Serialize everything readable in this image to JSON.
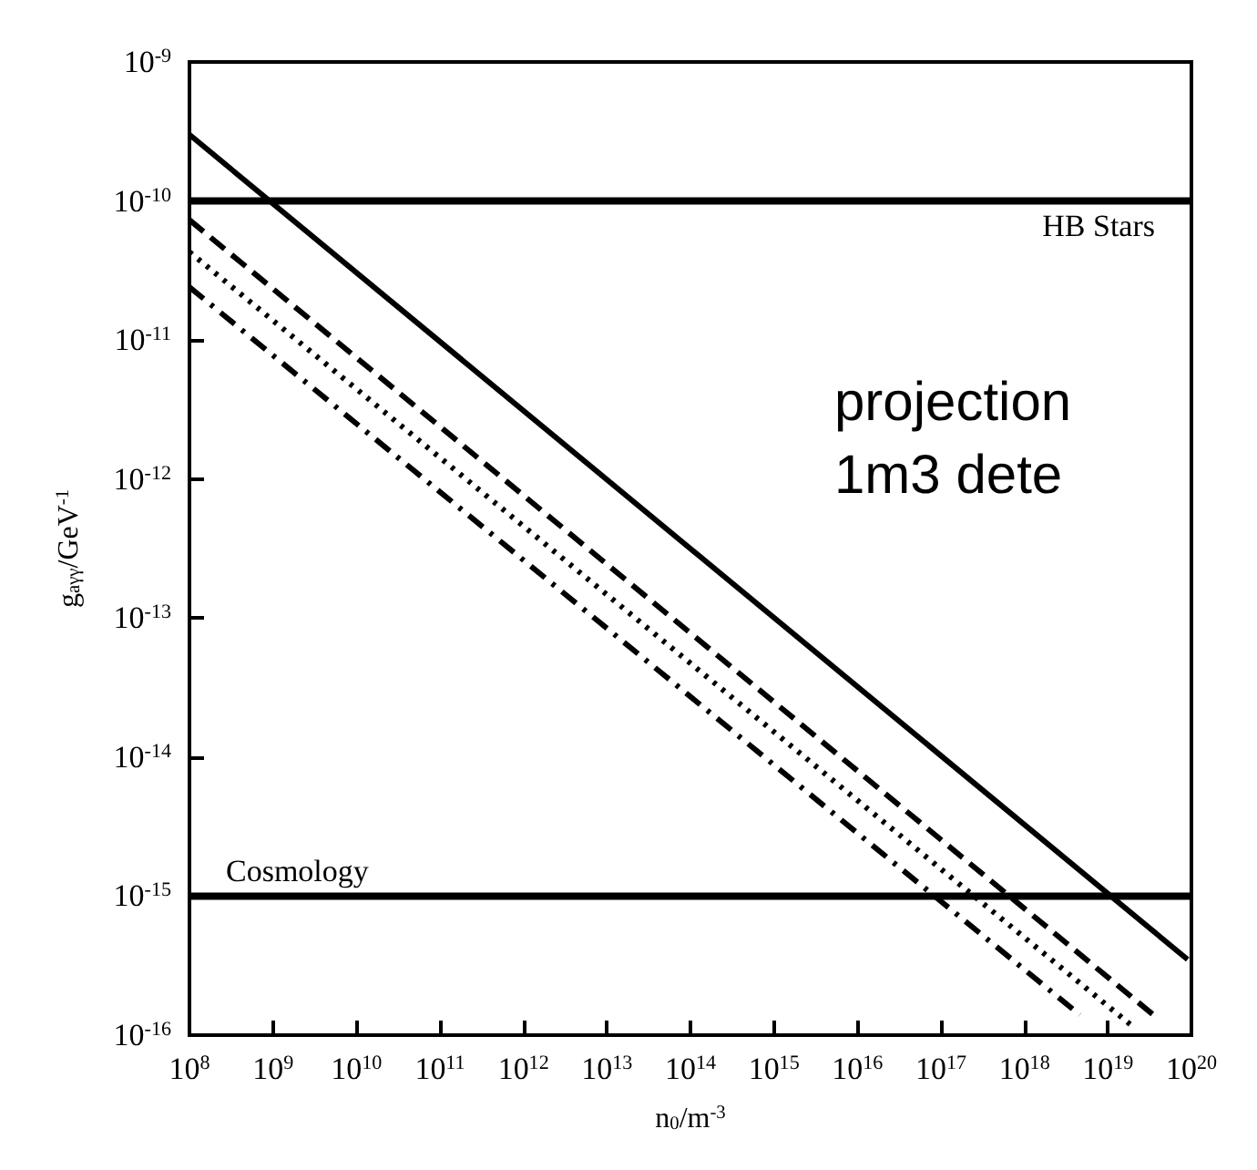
{
  "chart_data": {
    "type": "line",
    "xlabel": "n$_{0}$/m$^{-3}$",
    "ylabel": "g$_{aγγ}$/GeV$^{-1}$",
    "log": "xy",
    "xlim": [
      100000000.0,
      1e+20
    ],
    "ylim": [
      1e-16,
      1e-09
    ],
    "xticks": [
      {
        "value": 100000000.0,
        "label": "10$^{8}$"
      },
      {
        "value": 1000000000.0,
        "label": "10$^{9}$"
      },
      {
        "value": 10000000000.0,
        "label": "10$^{10}$"
      },
      {
        "value": 100000000000.0,
        "label": "10$^{11}$"
      },
      {
        "value": 1000000000000.0,
        "label": "10$^{12}$"
      },
      {
        "value": 10000000000000.0,
        "label": "10$^{13}$"
      },
      {
        "value": 100000000000000.0,
        "label": "10$^{14}$"
      },
      {
        "value": 1000000000000000.0,
        "label": "10$^{15}$"
      },
      {
        "value": 1e+16,
        "label": "10$^{16}$"
      },
      {
        "value": 1e+17,
        "label": "10$^{17}$"
      },
      {
        "value": 1e+18,
        "label": "10$^{18}$"
      },
      {
        "value": 1e+19,
        "label": "10$^{19}$"
      },
      {
        "value": 1e+20,
        "label": "10$^{20}$"
      }
    ],
    "yticks": [
      {
        "value": 1e-16,
        "label": "10$^{-16}$"
      },
      {
        "value": 1e-15,
        "label": "10$^{-15}$"
      },
      {
        "value": 1e-14,
        "label": "10$^{-14}$"
      },
      {
        "value": 1e-13,
        "label": "10$^{-13}$"
      },
      {
        "value": 1e-12,
        "label": "10$^{-12}$"
      },
      {
        "value": 1e-11,
        "label": "10$^{-11}$"
      },
      {
        "value": 1e-10,
        "label": "10$^{-10}$"
      },
      {
        "value": 1e-09,
        "label": "10$^{-9}$"
      }
    ],
    "series": [
      {
        "color": "#000000",
        "line_style": "solid",
        "x": [
          100000000.0,
          9e+19
        ],
        "values": [
          3e-10,
          3.5e-16
        ]
      },
      {
        "color": "#000000",
        "line_style": "dashed",
        "x": [
          100000000.0,
          3.5e+19
        ],
        "values": [
          7.3e-11,
          1.4e-16
        ]
      },
      {
        "color": "#000000",
        "line_style": "dotted",
        "x": [
          100000000.0,
          2e+19
        ],
        "values": [
          4.3e-11,
          1.15e-16
        ]
      },
      {
        "color": "#000000",
        "line_style": "dashdot",
        "x": [
          100000000.0,
          4.6e+18
        ],
        "values": [
          2.4e-11,
          1.4e-16
        ]
      }
    ],
    "ref_lines": [
      {
        "axis": "y",
        "value": 1e-10,
        "label": "HB Stars",
        "color": "#000000"
      },
      {
        "axis": "y",
        "value": 1e-15,
        "label": "Cosmology",
        "color": "#000000"
      }
    ],
    "annotations": [
      "projection\n1m3 dete"
    ],
    "marker": "none",
    "grid": false
  }
}
